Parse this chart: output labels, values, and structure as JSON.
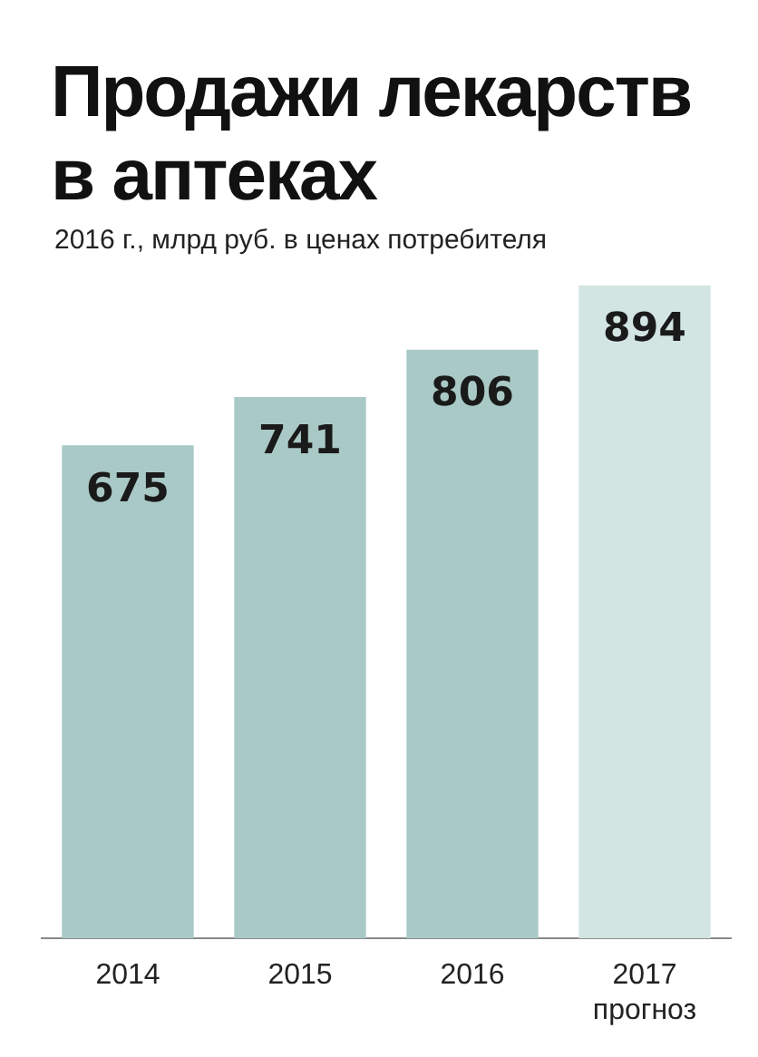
{
  "chart_data": {
    "type": "bar",
    "title": "Продажи лекарств в аптеках",
    "subtitle": "2016 г., млрд руб. в ценах потребителя",
    "categories": [
      "2014",
      "2015",
      "2016",
      "2017\nпрогноз"
    ],
    "values": [
      675,
      741,
      806,
      894
    ],
    "colors": [
      "#a9c9c6",
      "#a9c9c6",
      "#a9c9c6",
      "#d3e5e3"
    ],
    "data_labels": true,
    "relative": false
  }
}
